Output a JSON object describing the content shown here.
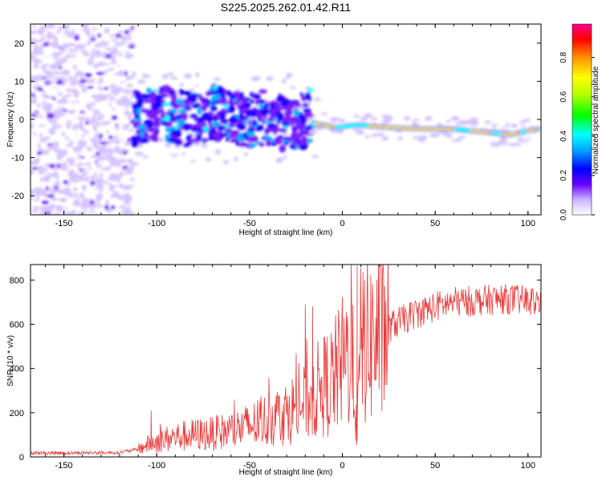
{
  "title": "S225.2025.262.01.42.R11",
  "chart_data": [
    {
      "type": "heatmap",
      "xlabel": "Height of straight line (km)",
      "ylabel": "Frequency (Hz)",
      "xlim": [
        -168,
        107
      ],
      "ylim": [
        -25,
        25
      ],
      "x_ticks": [
        -150,
        -100,
        -50,
        0,
        50,
        100
      ],
      "x_tick_labels": [
        "-150",
        "-100",
        "-50",
        "0",
        "50",
        "100"
      ],
      "y_ticks": [
        -20,
        -10,
        0,
        10,
        20
      ],
      "y_tick_labels": [
        "-20",
        "-10",
        "0",
        "10",
        "20"
      ],
      "colorbar": {
        "label": "Normalized spectral amplitude",
        "range": [
          0,
          0.97
        ],
        "ticks": [
          0,
          0.2,
          0.4,
          0.6,
          0.8
        ],
        "tick_labels": [
          "0.0",
          "0.2",
          "0.4",
          "0.6",
          "0.8"
        ]
      },
      "ridge": {
        "x": [
          -115,
          -100,
          -90,
          -80,
          -70,
          -60,
          -50,
          -40,
          -30,
          -20,
          -15,
          -10,
          -5,
          0,
          5,
          10,
          20,
          30,
          40,
          50,
          60,
          70,
          80,
          90,
          100,
          105
        ],
        "freq": [
          -3,
          -1,
          -2,
          -3,
          -1,
          -2,
          -3,
          -2,
          -4,
          -3,
          -1,
          -1.5,
          -2,
          -2,
          -1.5,
          -1.5,
          -2,
          -2.2,
          -2.5,
          -2.5,
          -2.5,
          -3,
          -3.5,
          -4,
          -3,
          -2.5
        ]
      }
    },
    {
      "type": "line",
      "xlabel": "Height of straight line (km)",
      "ylabel": "SNR (10 * v/v)",
      "xlim": [
        -168,
        107
      ],
      "ylim": [
        0,
        870
      ],
      "x_ticks": [
        -150,
        -100,
        -50,
        0,
        50,
        100
      ],
      "x_tick_labels": [
        "-150",
        "-100",
        "-50",
        "0",
        "50",
        "100"
      ],
      "y_ticks": [
        0,
        200,
        400,
        600,
        800
      ],
      "y_tick_labels": [
        "0",
        "200",
        "400",
        "600",
        "800"
      ],
      "color": "#e83a3a",
      "trend": {
        "x": [
          -168,
          -150,
          -120,
          -110,
          -105,
          -100,
          -90,
          -80,
          -70,
          -60,
          -50,
          -40,
          -30,
          -20,
          -15,
          -10,
          -5,
          0,
          5,
          8,
          10,
          15,
          20,
          30,
          40,
          50,
          60,
          70,
          80,
          90,
          100,
          107
        ],
        "snr": [
          18,
          18,
          20,
          35,
          55,
          70,
          90,
          100,
          105,
          120,
          140,
          170,
          200,
          250,
          290,
          320,
          350,
          420,
          480,
          120,
          520,
          520,
          560,
          610,
          650,
          680,
          700,
          705,
          710,
          715,
          705,
          700
        ]
      },
      "spikes": [
        {
          "x": 8,
          "snr": 865
        },
        {
          "x": 12,
          "snr": 800
        },
        {
          "x": -20,
          "snr": 690
        },
        {
          "x": -16,
          "snr": 680
        },
        {
          "x": -103,
          "snr": 210
        },
        {
          "x": 8,
          "snr": 75
        }
      ]
    }
  ]
}
